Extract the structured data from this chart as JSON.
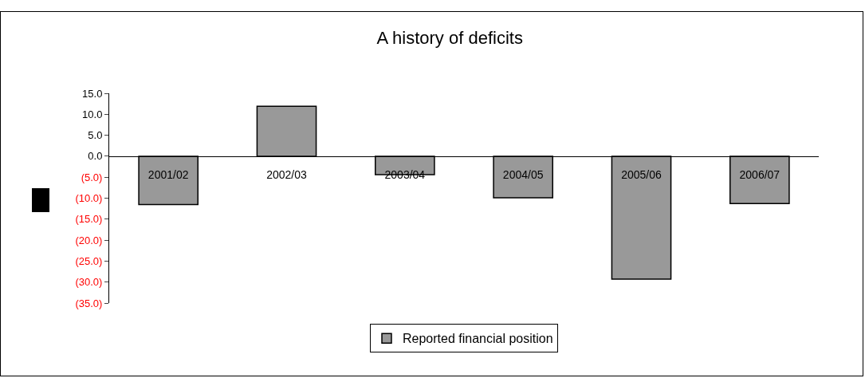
{
  "chart_data": {
    "type": "bar",
    "title": "A history of deficits",
    "categories": [
      "2001/02",
      "2002/03",
      "2003/04",
      "2004/05",
      "2005/06",
      "2006/07"
    ],
    "series": [
      {
        "name": "Reported financial position",
        "color": "#999999",
        "values": [
          -11.5,
          11.9,
          -4.4,
          -9.9,
          -29.3,
          -11.3
        ]
      }
    ],
    "ylim": [
      -35,
      15
    ],
    "yticks": [
      {
        "value": 15,
        "label": "15.0"
      },
      {
        "value": 10,
        "label": "10.0"
      },
      {
        "value": 5,
        "label": "5.0"
      },
      {
        "value": 0,
        "label": "0.0"
      },
      {
        "value": -5,
        "label": "(5.0)"
      },
      {
        "value": -10,
        "label": "(10.0)"
      },
      {
        "value": -15,
        "label": "(15.0)"
      },
      {
        "value": -20,
        "label": "(20.0)"
      },
      {
        "value": -25,
        "label": "(25.0)"
      },
      {
        "value": -30,
        "label": "(30.0)"
      },
      {
        "value": -35,
        "label": "(35.0)"
      }
    ],
    "grid": false,
    "legend": "bottom"
  }
}
